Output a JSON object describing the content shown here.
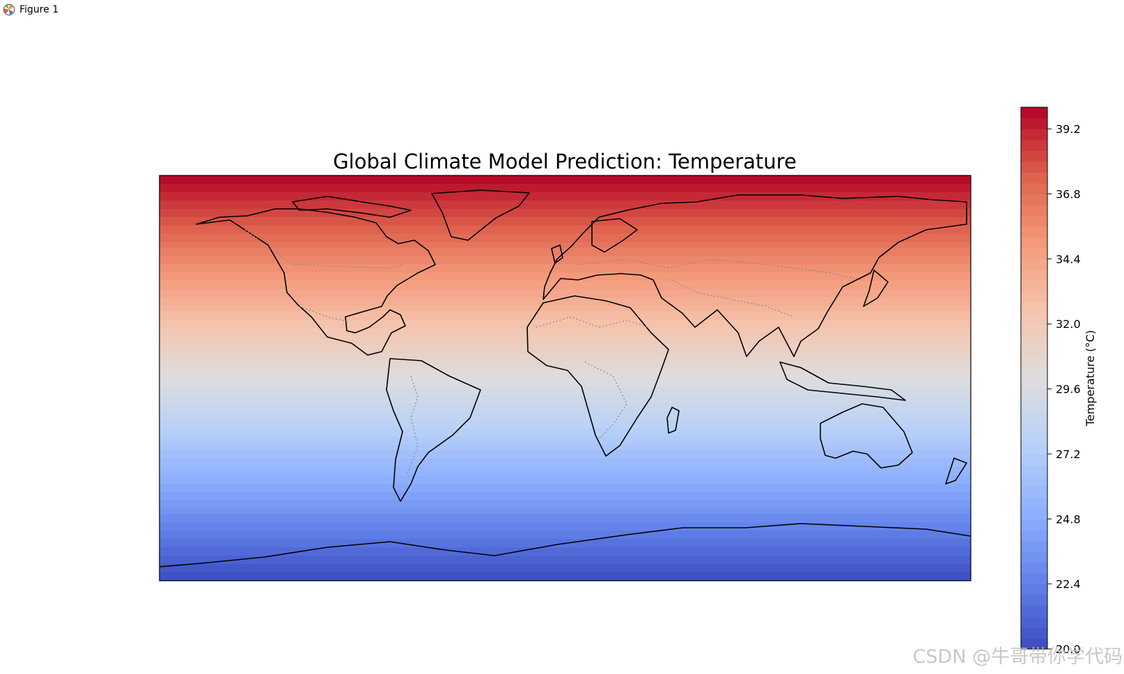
{
  "window": {
    "title": "Figure 1"
  },
  "map": {
    "title": "Global Climate Model Prediction: Temperature",
    "projection": "PlateCarree",
    "extent_lon": [
      -180,
      180
    ],
    "extent_lat": [
      -90,
      90
    ],
    "features": [
      "coastlines",
      "borders"
    ],
    "coastline_color": "#000000",
    "border_color": "#888888",
    "border_style": "dotted"
  },
  "chart_data": {
    "type": "heatmap",
    "title": "Global Climate Model Prediction: Temperature",
    "variable": "Temperature",
    "colormap": "coolwarm",
    "gradient": "increases toward the north, uniform along longitude",
    "value_range": [
      20.0,
      40.0
    ],
    "levels": 50,
    "lat_profile": {
      "lat": [
        -90,
        -60,
        -30,
        0,
        30,
        60,
        90
      ],
      "value": [
        20.0,
        23.3,
        26.7,
        30.0,
        33.3,
        36.7,
        40.0
      ]
    },
    "colorbar": {
      "label": "Temperature (°C)",
      "ticks": [
        "20.0",
        "22.4",
        "24.8",
        "27.2",
        "29.6",
        "32.0",
        "34.4",
        "36.8",
        "39.2"
      ],
      "tick_values": [
        20.0,
        22.4,
        24.8,
        27.2,
        29.6,
        32.0,
        34.4,
        36.8,
        39.2
      ],
      "position": "right",
      "orientation": "vertical"
    }
  },
  "watermark": {
    "text": "CSDN @牛哥带你学代码"
  }
}
